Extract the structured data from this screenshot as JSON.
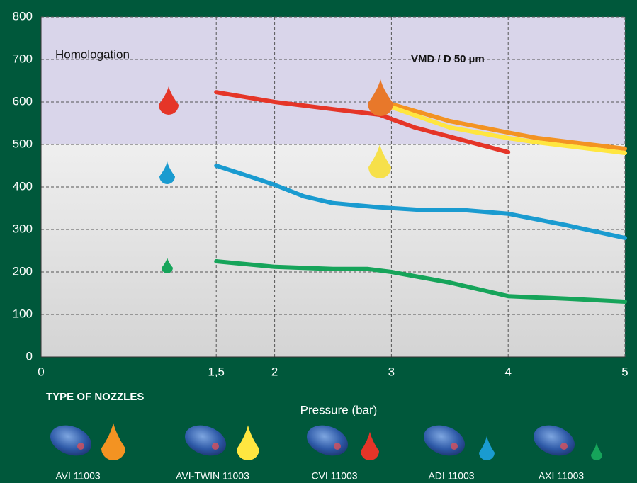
{
  "chart_data": {
    "type": "line",
    "xlabel": "Pressure (bar)",
    "annotation": "VMD / D 50 µm",
    "legend_title": "TYPE OF NOZZLES",
    "bands": [
      {
        "label": "Homologation",
        "range": [
          500,
          800
        ],
        "color": "#d9d5ea"
      }
    ],
    "xlim": [
      0,
      5
    ],
    "xticks": [
      0,
      {
        "value": 1.5,
        "label": "1,5"
      },
      2,
      3,
      4,
      5
    ],
    "ylim": [
      0,
      800
    ],
    "yticks": [
      0,
      100,
      200,
      300,
      400,
      500,
      600,
      700,
      800
    ],
    "grid": true,
    "series": [
      {
        "name": "AVI 11003",
        "color": "#f39322",
        "x": [
          3,
          3.5,
          4,
          4.25,
          5
        ],
        "values": [
          595,
          555,
          528,
          515,
          490
        ]
      },
      {
        "name": "AVI-TWIN 11003",
        "color": "#ffe640",
        "x": [
          3,
          3.5,
          4,
          4.25,
          5
        ],
        "values": [
          588,
          540,
          515,
          505,
          480
        ]
      },
      {
        "name": "CVI 11003",
        "color": "#e53528",
        "x": [
          1.5,
          2,
          2.5,
          2.9,
          3.2,
          4
        ],
        "values": [
          623,
          600,
          583,
          570,
          540,
          482
        ]
      },
      {
        "name": "ADI 11003",
        "color": "#1a9bd0",
        "x": [
          1.5,
          1.75,
          2,
          2.25,
          2.5,
          2.9,
          3.25,
          3.6,
          4,
          4.5,
          5
        ],
        "values": [
          450,
          428,
          405,
          378,
          362,
          352,
          346,
          346,
          337,
          310,
          280
        ]
      },
      {
        "name": "AXI 11003",
        "color": "#16a45a",
        "x": [
          1.5,
          2,
          2.5,
          2.8,
          3,
          3.5,
          4,
          4.5,
          5
        ],
        "values": [
          225,
          212,
          207,
          207,
          200,
          175,
          143,
          137,
          130
        ]
      }
    ]
  }
}
